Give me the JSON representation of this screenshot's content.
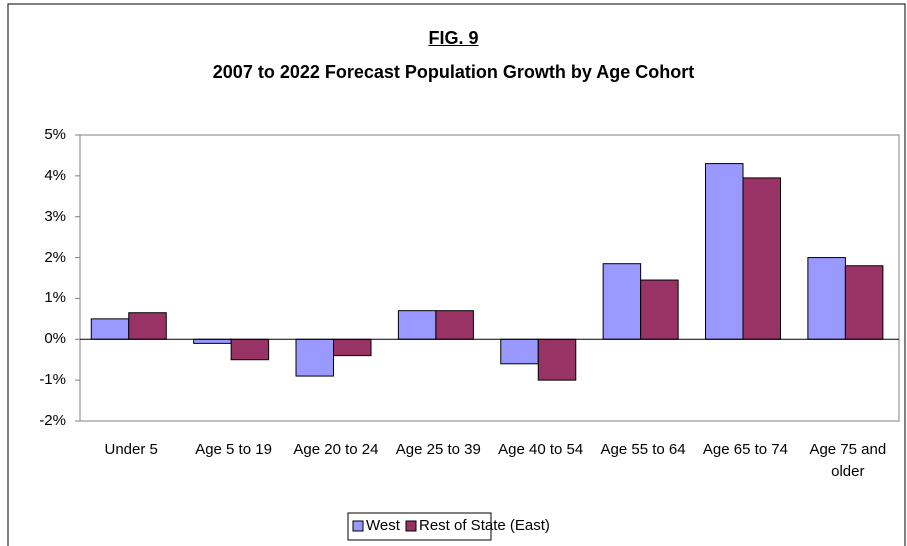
{
  "chart_data": {
    "type": "bar",
    "title": "FIG. 9",
    "subtitle": "2007 to 2022 Forecast Population Growth by Age Cohort",
    "categories": [
      "Under 5",
      "Age 5 to 19",
      "Age 20 to 24",
      "Age 25 to 39",
      "Age 40 to 54",
      "Age 55 to 64",
      "Age 65 to 74",
      "Age 75 and older"
    ],
    "series": [
      {
        "name": "West",
        "color": "#9999ff",
        "values": [
          0.5,
          -0.1,
          -0.9,
          0.7,
          -0.6,
          1.85,
          4.3,
          2.0
        ]
      },
      {
        "name": "Rest of State (East)",
        "color": "#993366",
        "values": [
          0.65,
          -0.5,
          -0.4,
          0.7,
          -1.0,
          1.45,
          3.95,
          1.8
        ]
      }
    ],
    "ylim": [
      -2,
      5
    ],
    "yticks": [
      {
        "value": -2,
        "label": "-2%"
      },
      {
        "value": -1,
        "label": "-1%"
      },
      {
        "value": 0,
        "label": "0%"
      },
      {
        "value": 1,
        "label": "1%"
      },
      {
        "value": 2,
        "label": "2%"
      },
      {
        "value": 3,
        "label": "3%"
      },
      {
        "value": 4,
        "label": "4%"
      },
      {
        "value": 5,
        "label": "5%"
      }
    ],
    "grid": false,
    "legend": "bottom"
  }
}
